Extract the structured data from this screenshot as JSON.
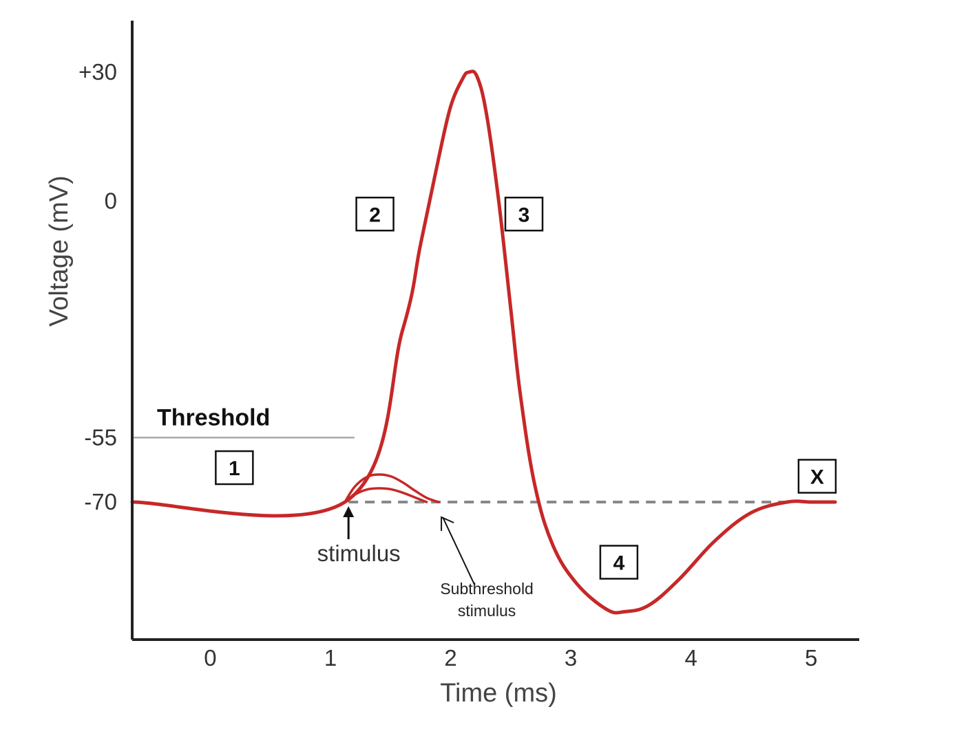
{
  "chart_data": {
    "type": "line",
    "title": "",
    "xlabel": "Time (ms)",
    "ylabel": "Voltage (mV)",
    "x_ticks": [
      0,
      1,
      2,
      3,
      4,
      5
    ],
    "y_ticks": [
      {
        "value": 30,
        "label": "+30"
      },
      {
        "value": 0,
        "label": "0"
      },
      {
        "value": -55,
        "label": "-55"
      },
      {
        "value": -70,
        "label": "-70"
      }
    ],
    "xlim": [
      -0.65,
      5.4
    ],
    "ylim": [
      -102,
      42
    ],
    "threshold": {
      "value": -55,
      "label": "Threshold",
      "x_end": 1.2
    },
    "resting": {
      "value": -70,
      "x_start": 1.15,
      "x_end": 4.8
    },
    "series": [
      {
        "name": "Action potential",
        "color": "#c62828",
        "x": [
          -0.65,
          1.12,
          1.6,
          1.75,
          1.9,
          2.0,
          2.1,
          2.15,
          2.22,
          2.3,
          2.4,
          2.5,
          2.58,
          2.7,
          2.85,
          3.05,
          3.3,
          3.45,
          3.65,
          3.9,
          4.2,
          4.5,
          4.8,
          5.0,
          5.2
        ],
        "y": [
          -70,
          -70,
          -30,
          -10,
          10,
          22,
          28.5,
          30,
          29,
          20,
          0,
          -25,
          -45,
          -66,
          -80,
          -89,
          -95,
          -95.5,
          -94,
          -88,
          -79,
          -72.5,
          -70,
          -70,
          -70
        ]
      },
      {
        "name": "Subthreshold response (large)",
        "color": "#c62828",
        "x": [
          1.12,
          1.2,
          1.3,
          1.4,
          1.5,
          1.6,
          1.7,
          1.8,
          1.9
        ],
        "y": [
          -70,
          -66.5,
          -64.2,
          -63.6,
          -64.0,
          -65.4,
          -67.3,
          -69.0,
          -70
        ]
      },
      {
        "name": "Subthreshold response (small)",
        "color": "#c62828",
        "x": [
          1.12,
          1.2,
          1.3,
          1.4,
          1.5,
          1.6,
          1.7,
          1.8
        ],
        "y": [
          -70,
          -68.3,
          -67.1,
          -66.8,
          -67.0,
          -67.8,
          -68.9,
          -70
        ]
      }
    ],
    "annotations": [
      {
        "text": "stimulus",
        "x": 1.15,
        "y": -70,
        "kind": "arrow-up"
      },
      {
        "text": "Subthreshold",
        "text2": "stimulus",
        "x": 1.9,
        "y": -70,
        "kind": "arrow-to-point"
      }
    ],
    "phase_boxes": [
      {
        "label": "1",
        "x": 0.2,
        "y": -62
      },
      {
        "label": "2",
        "x": 1.37,
        "y": -3
      },
      {
        "label": "3",
        "x": 2.61,
        "y": -3
      },
      {
        "label": "4",
        "x": 3.4,
        "y": -84
      },
      {
        "label": "X",
        "x": 5.05,
        "y": -64
      }
    ]
  }
}
